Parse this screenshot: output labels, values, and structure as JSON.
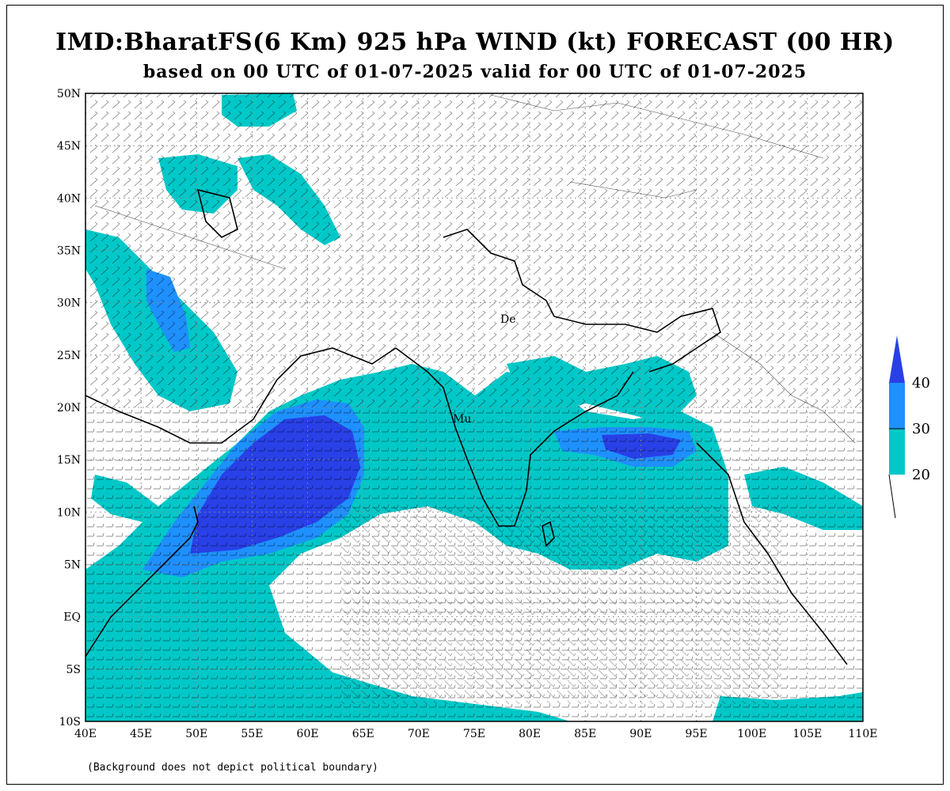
{
  "title": "IMD:BharatFS(6 Km) 925 hPa WIND (kt) FORECAST (00 HR)",
  "subtitle": "based on 00 UTC of 01-07-2025 valid for 00 UTC of 01-07-2025",
  "footnote": "(Background does not depict political boundary)",
  "x_ticks": [
    "40E",
    "45E",
    "50E",
    "55E",
    "60E",
    "65E",
    "70E",
    "75E",
    "80E",
    "85E",
    "90E",
    "95E",
    "100E",
    "105E",
    "110E"
  ],
  "y_ticks": [
    "50N",
    "45N",
    "40N",
    "35N",
    "30N",
    "25N",
    "20N",
    "15N",
    "10N",
    "5N",
    "EQ",
    "5S",
    "10S"
  ],
  "city_labels": [
    "De",
    "Mu"
  ],
  "legend": {
    "levels": [
      "40",
      "30",
      "20"
    ],
    "colors": {
      "c20": "#00c8c8",
      "c30": "#1e90ff",
      "c40": "#2840e6"
    }
  },
  "map": {
    "lon_range": [
      40,
      110
    ],
    "lat_range": [
      -10,
      50
    ],
    "grid": "dotted"
  }
}
